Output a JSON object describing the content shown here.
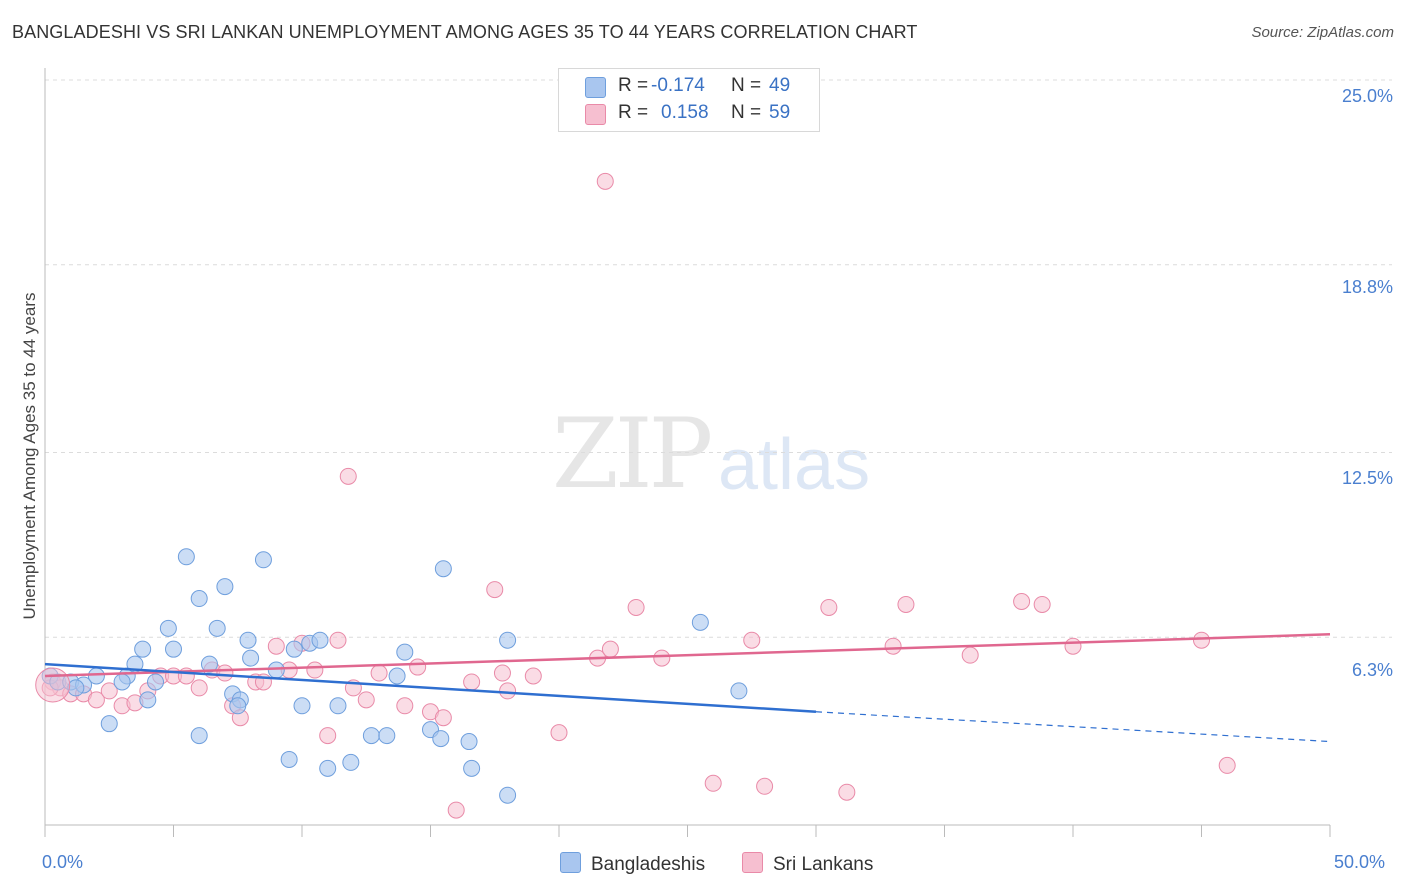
{
  "title": "BANGLADESHI VS SRI LANKAN UNEMPLOYMENT AMONG AGES 35 TO 44 YEARS CORRELATION CHART",
  "source": "Source: ZipAtlas.com",
  "watermark": {
    "zip": "ZIP",
    "atlas": "atlas"
  },
  "legend": {
    "blue": {
      "r_label": "R =",
      "r_value": "-0.174",
      "n_label": "N =",
      "n_value": "49"
    },
    "pink": {
      "r_label": "R =",
      "r_value": "0.158",
      "n_label": "N =",
      "n_value": "59"
    }
  },
  "bottom_legend": {
    "blue": "Bangladeshis",
    "pink": "Sri Lankans"
  },
  "colors": {
    "blue_fill": "#a9c6ef",
    "blue_stroke": "#6f9fdd",
    "blue_line": "#2f6fd0",
    "pink_fill": "#f6bfd0",
    "pink_stroke": "#e98aa8",
    "pink_line": "#e0678f",
    "grid": "#dcdcdc",
    "tick_text": "#4a7fcf"
  },
  "chart_data": {
    "type": "scatter",
    "title": "BANGLADESHI VS SRI LANKAN UNEMPLOYMENT AMONG AGES 35 TO 44 YEARS CORRELATION CHART",
    "xlabel": "",
    "ylabel": "Unemployment Among Ages 35 to 44 years",
    "xlim": [
      0,
      50
    ],
    "ylim": [
      0,
      25
    ],
    "x_tick_labels": [
      "0.0%",
      "50.0%"
    ],
    "y_tick_labels": [
      "6.3%",
      "12.5%",
      "18.8%",
      "25.0%"
    ],
    "y_ticks": [
      6.3,
      12.5,
      18.8,
      25.0
    ],
    "grid": true,
    "series": [
      {
        "name": "Bangladeshis",
        "points": [
          [
            0.2,
            5.0
          ],
          [
            0.5,
            4.8
          ],
          [
            1.0,
            4.8
          ],
          [
            1.5,
            4.7
          ],
          [
            2.0,
            5.0
          ],
          [
            2.5,
            3.4
          ],
          [
            3.2,
            5.0
          ],
          [
            3.5,
            5.4
          ],
          [
            3.8,
            5.9
          ],
          [
            4.0,
            4.2
          ],
          [
            4.3,
            4.8
          ],
          [
            4.8,
            6.6
          ],
          [
            5.0,
            5.9
          ],
          [
            5.5,
            9.0
          ],
          [
            6.0,
            7.6
          ],
          [
            6.4,
            5.4
          ],
          [
            6.7,
            6.6
          ],
          [
            7.0,
            8.0
          ],
          [
            7.3,
            4.4
          ],
          [
            7.6,
            4.2
          ],
          [
            7.9,
            6.2
          ],
          [
            8.0,
            5.6
          ],
          [
            8.5,
            8.9
          ],
          [
            9.0,
            5.2
          ],
          [
            9.5,
            2.2
          ],
          [
            9.7,
            5.9
          ],
          [
            10.0,
            4.0
          ],
          [
            10.3,
            6.1
          ],
          [
            10.7,
            6.2
          ],
          [
            11.0,
            1.9
          ],
          [
            11.4,
            4.0
          ],
          [
            11.9,
            2.1
          ],
          [
            12.7,
            3.0
          ],
          [
            13.3,
            3.0
          ],
          [
            13.7,
            5.0
          ],
          [
            14.0,
            5.8
          ],
          [
            15.0,
            3.2
          ],
          [
            15.5,
            8.6
          ],
          [
            15.4,
            2.9
          ],
          [
            16.5,
            2.8
          ],
          [
            16.6,
            1.9
          ],
          [
            18.0,
            1.0
          ],
          [
            18.0,
            6.2
          ],
          [
            25.5,
            6.8
          ],
          [
            27.0,
            4.5
          ],
          [
            1.2,
            4.6
          ],
          [
            3.0,
            4.8
          ],
          [
            6.0,
            3.0
          ],
          [
            7.5,
            4.0
          ]
        ],
        "trend_solid": [
          [
            0,
            5.4
          ],
          [
            30,
            3.8
          ]
        ],
        "trend_dashed": [
          [
            30,
            3.8
          ],
          [
            50,
            2.8
          ]
        ]
      },
      {
        "name": "Sri Lankans",
        "points": [
          [
            0.3,
            4.8
          ],
          [
            0.6,
            4.6
          ],
          [
            1.0,
            4.4
          ],
          [
            1.5,
            4.4
          ],
          [
            2.0,
            4.2
          ],
          [
            2.5,
            4.5
          ],
          [
            3.0,
            4.0
          ],
          [
            3.5,
            4.1
          ],
          [
            4.0,
            4.5
          ],
          [
            4.5,
            5.0
          ],
          [
            5.0,
            5.0
          ],
          [
            5.5,
            5.0
          ],
          [
            6.0,
            4.6
          ],
          [
            6.5,
            5.2
          ],
          [
            7.0,
            5.1
          ],
          [
            7.3,
            4.0
          ],
          [
            7.6,
            3.6
          ],
          [
            8.2,
            4.8
          ],
          [
            8.5,
            4.8
          ],
          [
            9.0,
            6.0
          ],
          [
            9.5,
            5.2
          ],
          [
            10.0,
            6.1
          ],
          [
            10.5,
            5.2
          ],
          [
            11.0,
            3.0
          ],
          [
            11.4,
            6.2
          ],
          [
            12.0,
            4.6
          ],
          [
            12.5,
            4.2
          ],
          [
            13.0,
            5.1
          ],
          [
            14.0,
            4.0
          ],
          [
            14.5,
            5.3
          ],
          [
            15.0,
            3.8
          ],
          [
            15.5,
            3.6
          ],
          [
            16.0,
            0.5
          ],
          [
            16.6,
            4.8
          ],
          [
            17.5,
            7.9
          ],
          [
            17.8,
            5.1
          ],
          [
            18.0,
            4.5
          ],
          [
            19.0,
            5.0
          ],
          [
            20.0,
            3.1
          ],
          [
            21.5,
            5.6
          ],
          [
            22.0,
            5.9
          ],
          [
            21.8,
            21.6
          ],
          [
            23.0,
            7.3
          ],
          [
            24.0,
            5.6
          ],
          [
            26.0,
            1.4
          ],
          [
            27.5,
            6.2
          ],
          [
            28.0,
            1.3
          ],
          [
            30.5,
            7.3
          ],
          [
            31.2,
            1.1
          ],
          [
            33.0,
            6.0
          ],
          [
            33.5,
            7.4
          ],
          [
            36.0,
            5.7
          ],
          [
            38.0,
            7.5
          ],
          [
            38.8,
            7.4
          ],
          [
            40.0,
            6.0
          ],
          [
            45.0,
            6.2
          ],
          [
            46.0,
            2.0
          ],
          [
            11.8,
            11.7
          ],
          [
            0.2,
            4.6
          ]
        ],
        "trend": [
          [
            0,
            5.0
          ],
          [
            50,
            6.4
          ]
        ]
      }
    ]
  }
}
